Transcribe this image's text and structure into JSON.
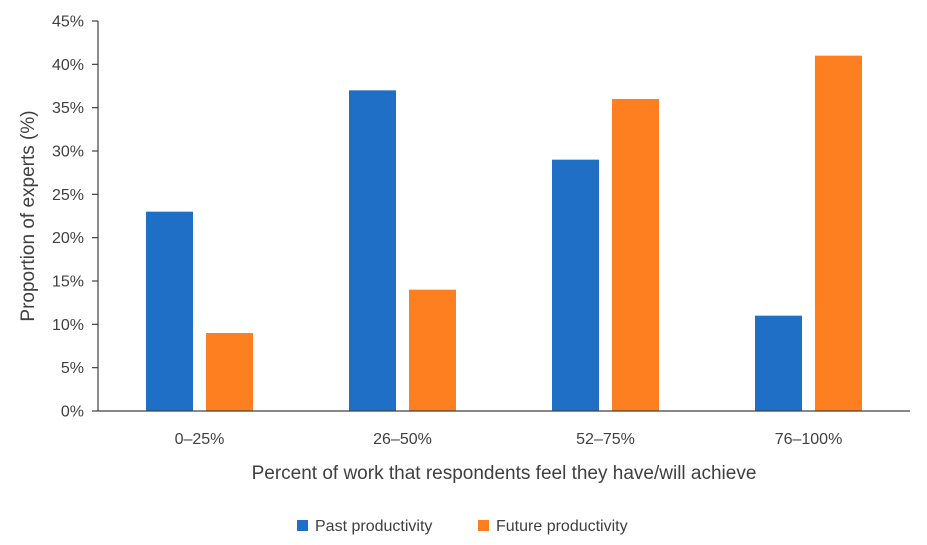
{
  "chart_data": {
    "type": "bar",
    "title": "",
    "xlabel": "Percent of work that respondents feel they have/will achieve",
    "ylabel": "Proportion of experts (%)",
    "categories": [
      "0–25%",
      "26–50%",
      "52–75%",
      "76–100%"
    ],
    "series": [
      {
        "name": "Past productivity",
        "values": [
          23,
          37,
          29,
          11
        ],
        "color": "#1f6fc6"
      },
      {
        "name": "Future productivity",
        "values": [
          9,
          14,
          36,
          41
        ],
        "color": "#fd7f1f"
      }
    ],
    "ylim": [
      0,
      45
    ],
    "yticks": [
      0,
      5,
      10,
      15,
      20,
      25,
      30,
      35,
      40,
      45
    ],
    "ytick_labels": [
      "0%",
      "5%",
      "10%",
      "15%",
      "20%",
      "25%",
      "30%",
      "35%",
      "40%",
      "45%"
    ],
    "grid": false,
    "legend": "bottom"
  }
}
